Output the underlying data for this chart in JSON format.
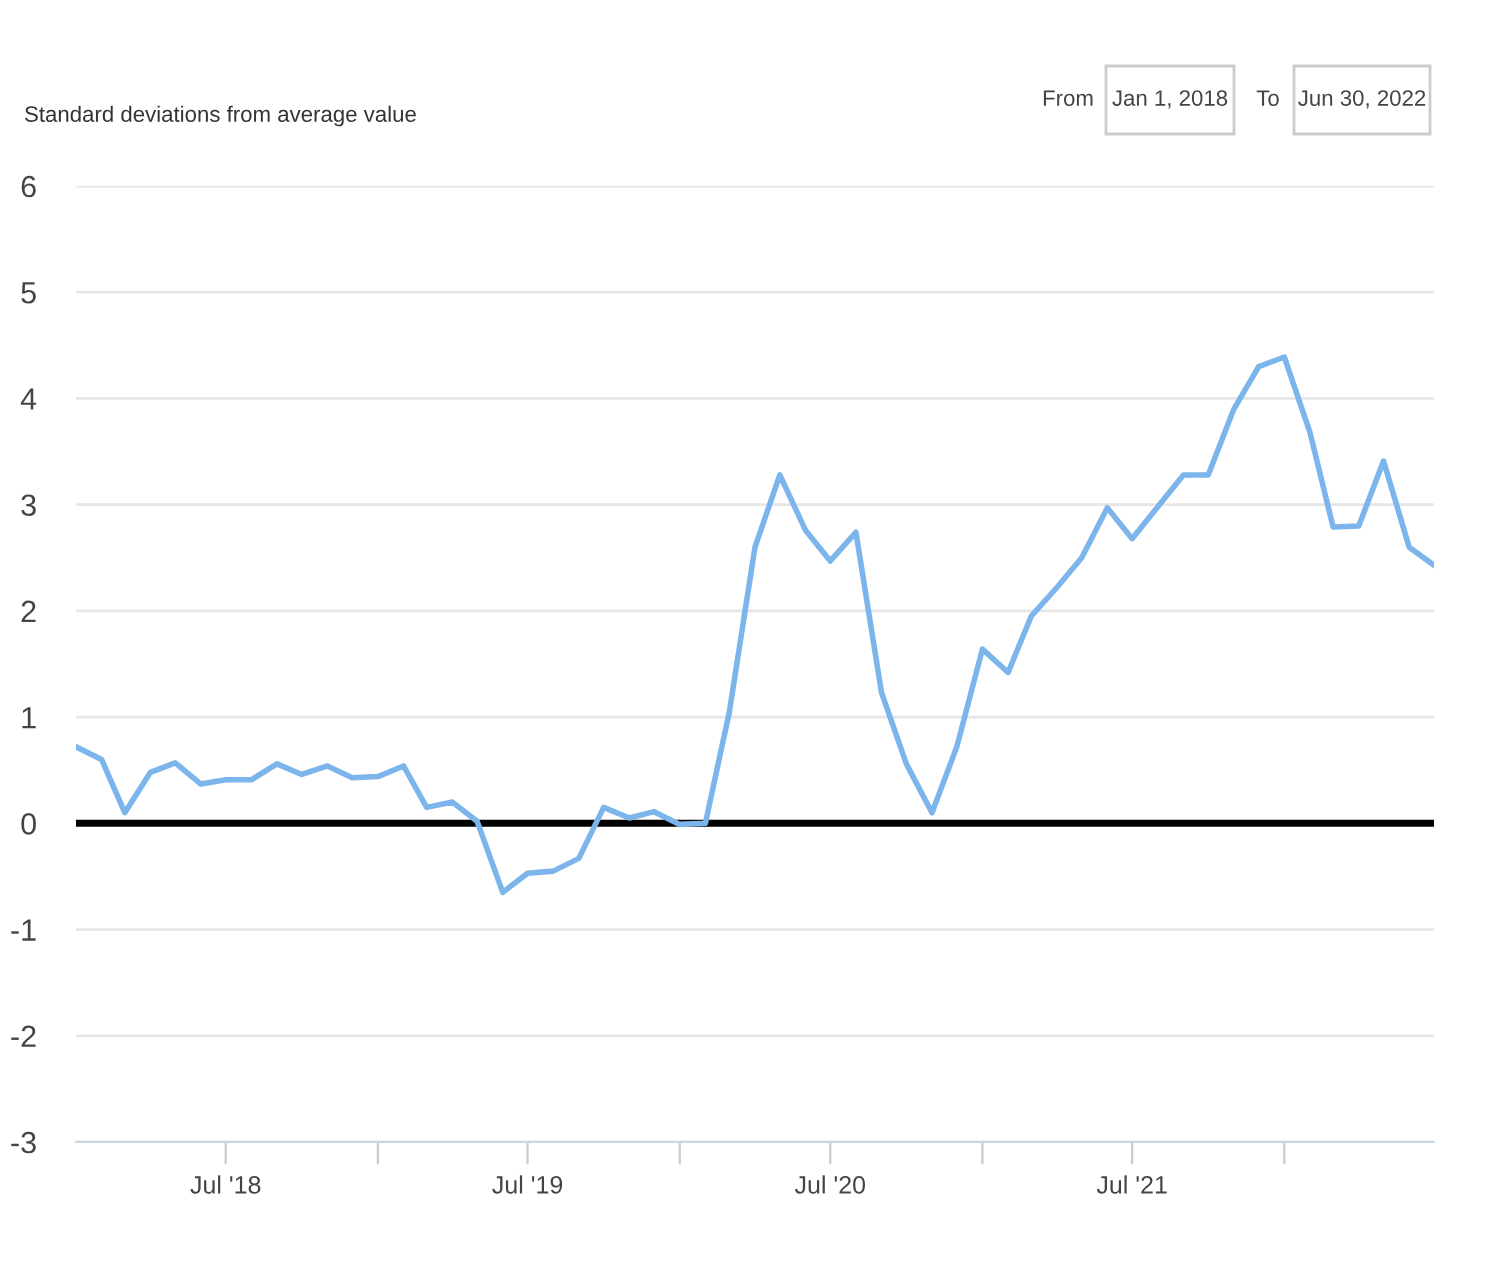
{
  "chart_data": {
    "type": "line",
    "ylabel": "Standard deviations from average value",
    "annotations": [
      "From",
      "Jan 1, 2018",
      "To",
      "Jun 30, 2022"
    ],
    "x": [
      "2018-01",
      "2018-02",
      "2018-03",
      "2018-04",
      "2018-05",
      "2018-06",
      "2018-07",
      "2018-08",
      "2018-09",
      "2018-10",
      "2018-11",
      "2018-12",
      "2019-01",
      "2019-02",
      "2019-03",
      "2019-04",
      "2019-05",
      "2019-06",
      "2019-07",
      "2019-08",
      "2019-09",
      "2019-10",
      "2019-11",
      "2019-12",
      "2020-01",
      "2020-02",
      "2020-03",
      "2020-04",
      "2020-05",
      "2020-06",
      "2020-07",
      "2020-08",
      "2020-09",
      "2020-10",
      "2020-11",
      "2020-12",
      "2021-01",
      "2021-02",
      "2021-03",
      "2021-04",
      "2021-05",
      "2021-06",
      "2021-07",
      "2021-08",
      "2021-09",
      "2021-10",
      "2021-11",
      "2021-12",
      "2022-01",
      "2022-02",
      "2022-03",
      "2022-04",
      "2022-05",
      "2022-06",
      "2022-07"
    ],
    "series": [
      {
        "color": "#7cb5ec",
        "values": [
          0.72,
          0.6,
          0.1,
          0.48,
          0.57,
          0.37,
          0.41,
          0.41,
          0.56,
          0.46,
          0.54,
          0.43,
          0.44,
          0.54,
          0.15,
          0.2,
          0.02,
          -0.65,
          -0.47,
          -0.45,
          -0.33,
          0.15,
          0.05,
          0.11,
          -0.01,
          0.0,
          1.05,
          2.6,
          3.28,
          2.76,
          2.47,
          2.74,
          1.23,
          0.56,
          0.1,
          0.72,
          1.64,
          1.42,
          1.95,
          2.22,
          2.5,
          2.97,
          2.68,
          2.98,
          3.28,
          3.28,
          3.9,
          4.3,
          4.39,
          3.68,
          2.79,
          2.8,
          3.41,
          2.6,
          2.43
        ]
      }
    ],
    "xlim": [
      "2018-01",
      "2022-07"
    ],
    "xticks": [
      {
        "value": "2018-07",
        "label": "Jul '18"
      },
      {
        "value": "2019-01",
        "label": null
      },
      {
        "value": "2019-07",
        "label": "Jul '19"
      },
      {
        "value": "2020-01",
        "label": null
      },
      {
        "value": "2020-07",
        "label": "Jul '20"
      },
      {
        "value": "2021-01",
        "label": null
      },
      {
        "value": "2021-07",
        "label": "Jul '21"
      },
      {
        "value": "2022-01",
        "label": null
      }
    ],
    "ylim": [
      -3,
      6
    ],
    "yticks": [
      -3,
      -2,
      -1,
      0,
      1,
      2,
      3,
      4,
      5,
      6
    ],
    "ref_lines": [
      {
        "axis": "y",
        "value": 0,
        "label": null,
        "color": "#000000"
      }
    ],
    "grid": "y",
    "legend": false,
    "marker": "none",
    "line_style": "solid"
  }
}
